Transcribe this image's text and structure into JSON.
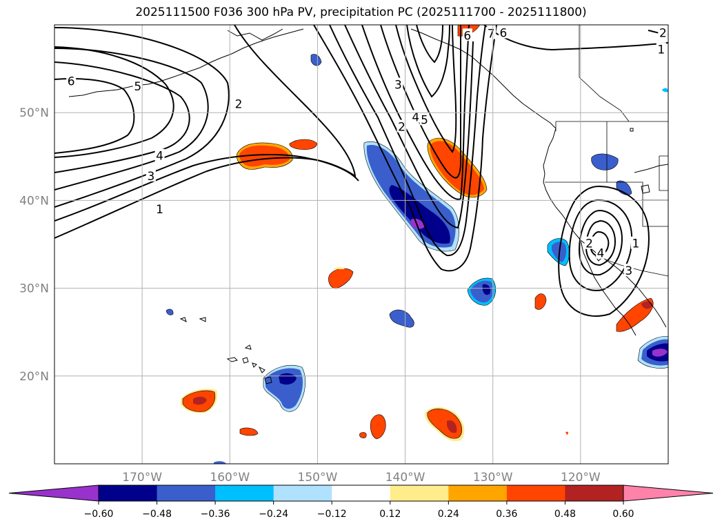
{
  "title": "2025111500 F036 300 hPa PV, precipitation PC (2025111700 - 2025111800)",
  "chart_data": {
    "type": "map",
    "projection": "PlateCarree",
    "extent_lon": [
      -180,
      -110
    ],
    "extent_lat": [
      10,
      60
    ],
    "lat_ticks": [
      {
        "value": 50,
        "label": "50°N"
      },
      {
        "value": 40,
        "label": "40°N"
      },
      {
        "value": 30,
        "label": "30°N"
      },
      {
        "value": 20,
        "label": "20°N"
      }
    ],
    "lon_ticks": [
      {
        "value": -170,
        "label": "170°W"
      },
      {
        "value": -160,
        "label": "160°W"
      },
      {
        "value": -150,
        "label": "150°W"
      },
      {
        "value": -140,
        "label": "140°W"
      },
      {
        "value": -130,
        "label": "130°W"
      },
      {
        "value": -120,
        "label": "120°W"
      }
    ],
    "pv_contour_labels": [
      {
        "text": "6",
        "lon": -178.1,
        "lat": 53.6
      },
      {
        "text": "5",
        "lon": -170.5,
        "lat": 53.0
      },
      {
        "text": "4",
        "lon": -168.0,
        "lat": 45.1
      },
      {
        "text": "3",
        "lon": -169.0,
        "lat": 42.8
      },
      {
        "text": "1",
        "lon": -168.0,
        "lat": 39.0
      },
      {
        "text": "2",
        "lon": -159.0,
        "lat": 51.0
      },
      {
        "text": "3",
        "lon": -140.8,
        "lat": 53.2
      },
      {
        "text": "2",
        "lon": -140.4,
        "lat": 48.4
      },
      {
        "text": "4",
        "lon": -138.8,
        "lat": 49.5
      },
      {
        "text": "5",
        "lon": -137.8,
        "lat": 49.2
      },
      {
        "text": "6",
        "lon": -132.9,
        "lat": 58.8
      },
      {
        "text": "7",
        "lon": -130.2,
        "lat": 59.0
      },
      {
        "text": "6",
        "lon": -128.8,
        "lat": 59.1
      },
      {
        "text": "2",
        "lon": -110.6,
        "lat": 59.1
      },
      {
        "text": "1",
        "lon": -110.8,
        "lat": 57.2
      },
      {
        "text": "2",
        "lon": -119.0,
        "lat": 35.1
      },
      {
        "text": "4",
        "lon": -117.7,
        "lat": 34.0
      },
      {
        "text": "3",
        "lon": -114.5,
        "lat": 32.0
      },
      {
        "text": "1",
        "lon": -113.7,
        "lat": 35.1
      }
    ],
    "precip_colorbar": {
      "levels": [
        -0.6,
        -0.48,
        -0.36,
        -0.24,
        -0.12,
        0.12,
        0.24,
        0.36,
        0.48,
        0.6
      ],
      "tick_labels": [
        "−0.60",
        "−0.48",
        "−0.36",
        "−0.24",
        "−0.12",
        "0.12",
        "0.24",
        "0.36",
        "0.48",
        "0.60"
      ],
      "colors": [
        "#9932cc",
        "#00008b",
        "#3a5fcd",
        "#00bfff",
        "#b0e2ff",
        "#ffffff",
        "#ffec8b",
        "#ffa500",
        "#ff4500",
        "#b22222",
        "#ff82ab"
      ]
    }
  }
}
